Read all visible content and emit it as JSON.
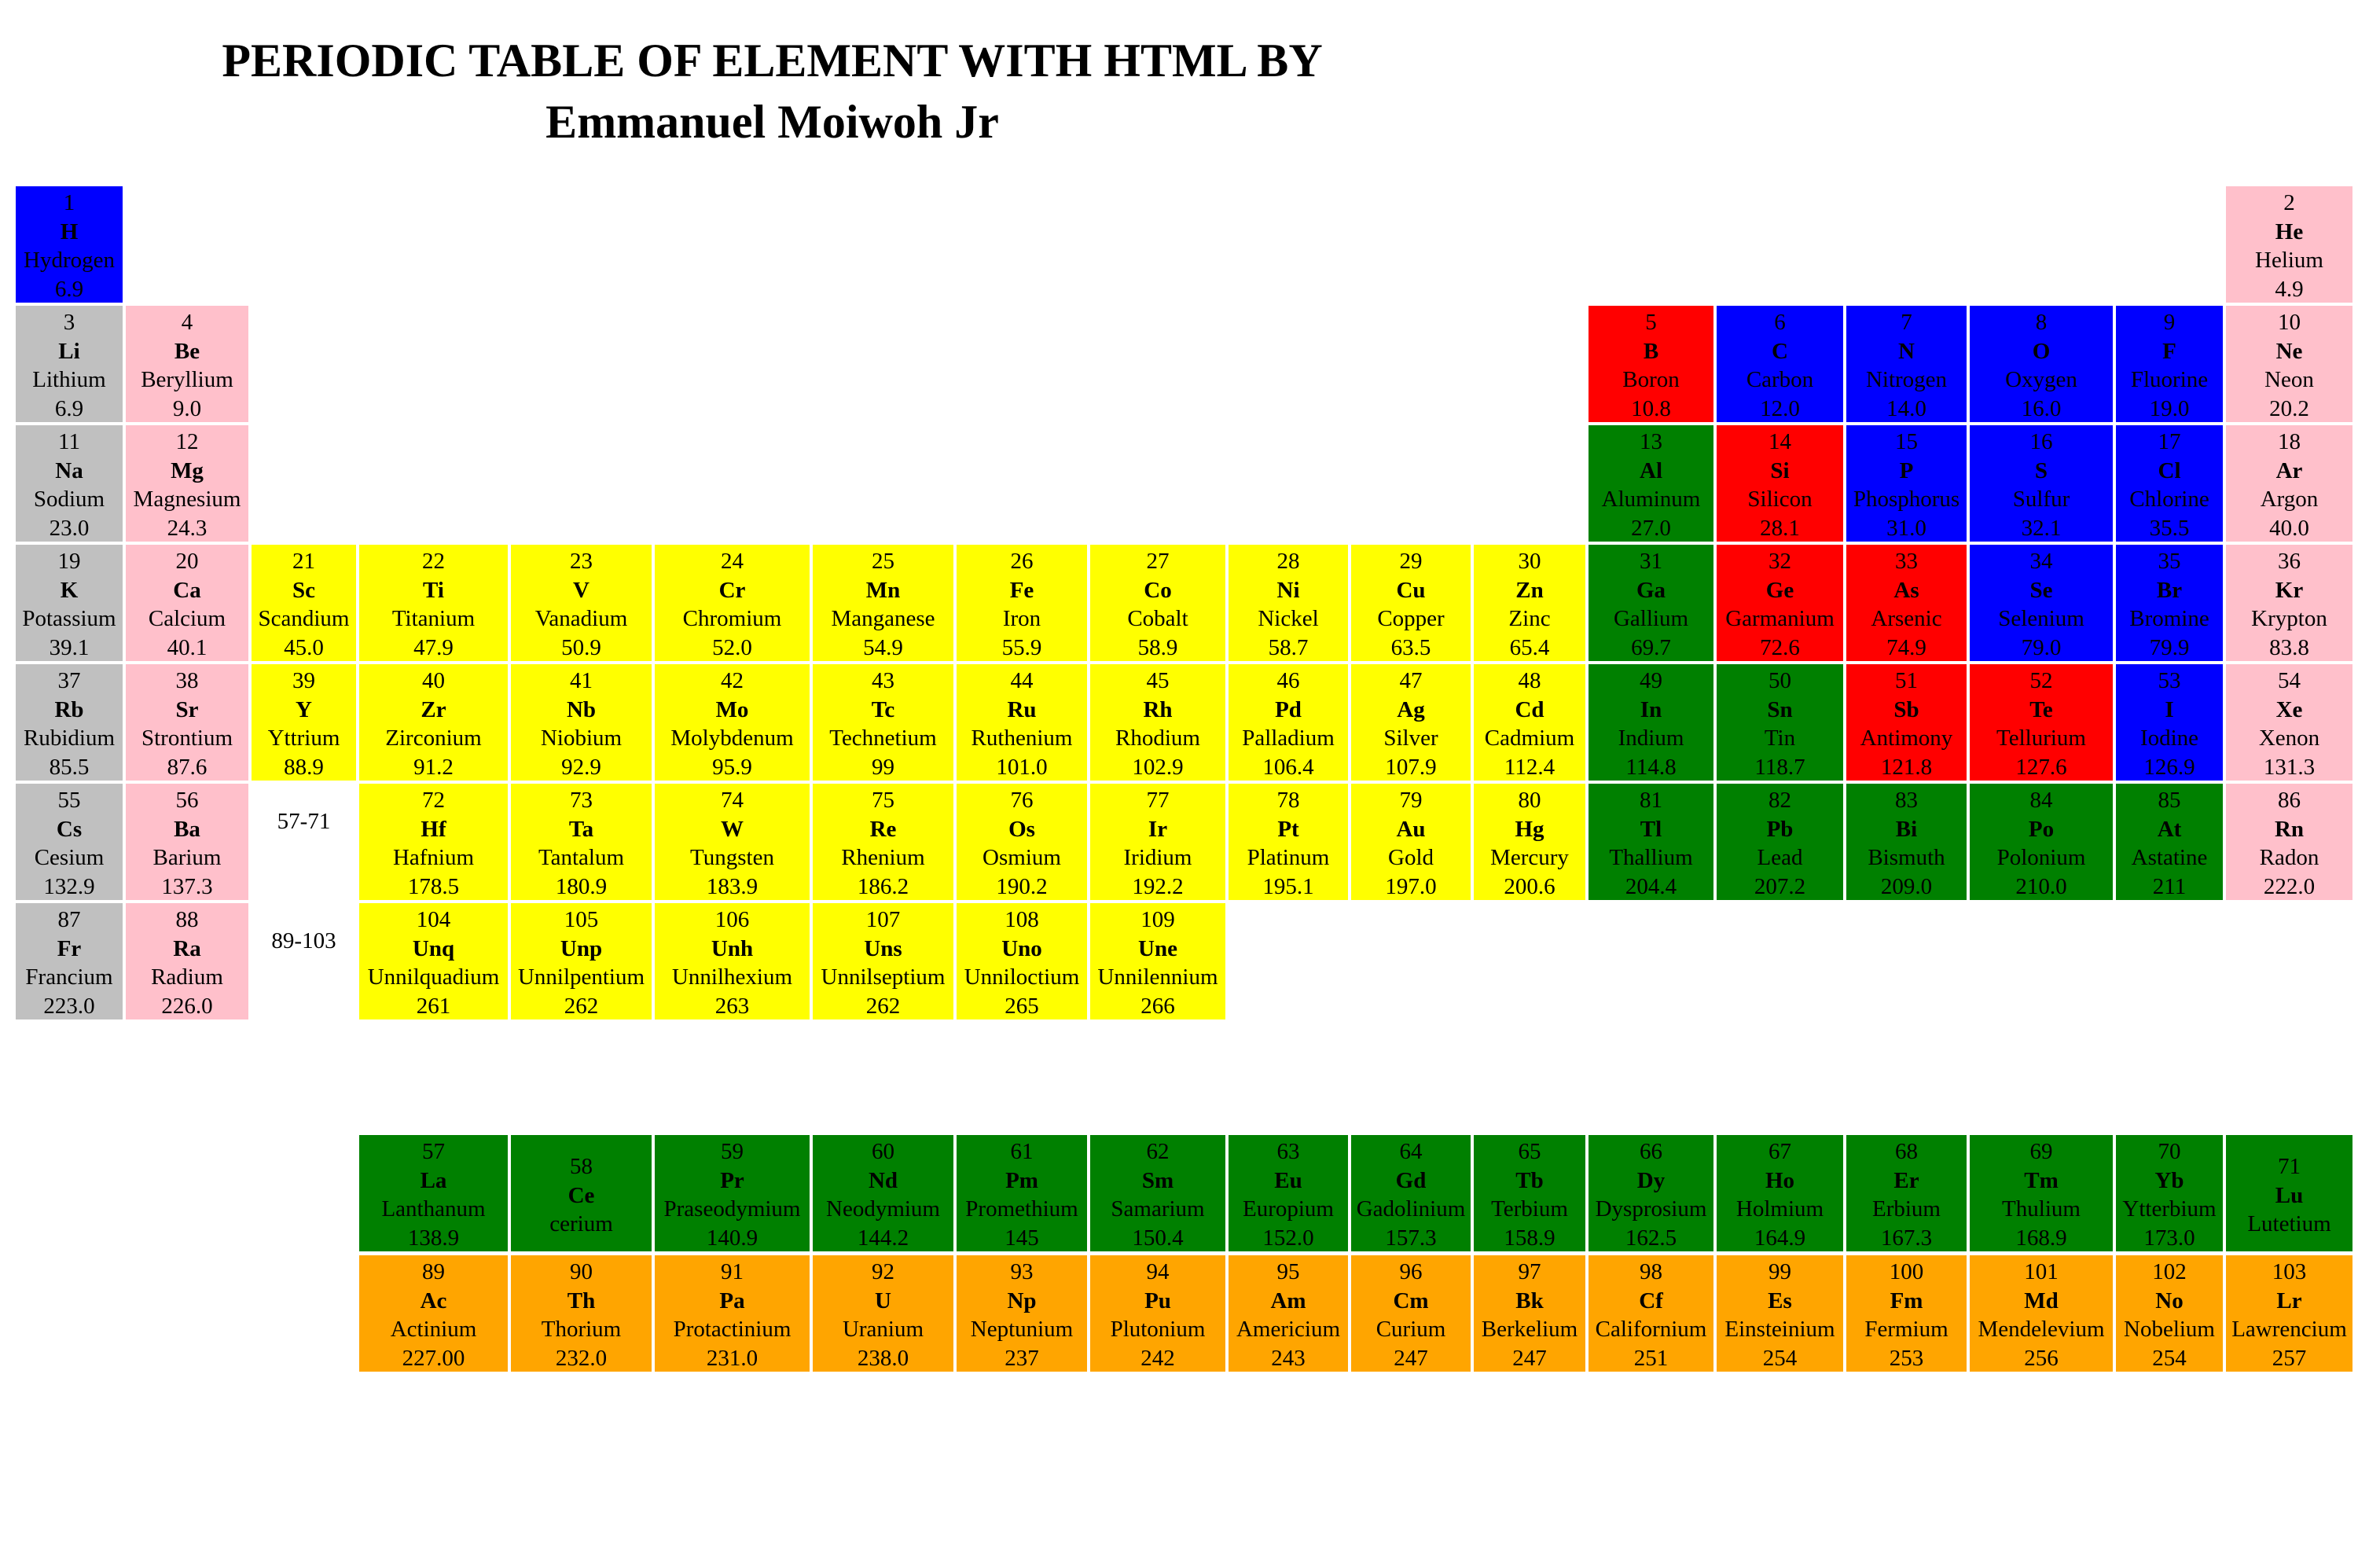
{
  "title": {
    "line1": "PERIODIC TABLE OF ELEMENT WITH HTML BY",
    "line2": "Emmanuel Moiwoh Jr"
  },
  "colors": {
    "gray": "#c0c0c0",
    "pink": "#ffc0cb",
    "blue": "#0000ff",
    "red": "#ff0000",
    "green": "#008000",
    "yellow": "#ffff00",
    "orange": "#ffa500"
  },
  "placeholders": {
    "lanthanides": "57-71",
    "actinides": "89-103"
  },
  "elements": [
    {
      "row": 1,
      "col": 1,
      "num": "1",
      "sym": "H",
      "name": "Hydrogen",
      "mass": "6.9",
      "color": "blue"
    },
    {
      "row": 1,
      "col": 18,
      "num": "2",
      "sym": "He",
      "name": "Helium",
      "mass": "4.9",
      "color": "pink"
    },
    {
      "row": 2,
      "col": 1,
      "num": "3",
      "sym": "Li",
      "name": "Lithium",
      "mass": "6.9",
      "color": "gray"
    },
    {
      "row": 2,
      "col": 2,
      "num": "4",
      "sym": "Be",
      "name": "Beryllium",
      "mass": "9.0",
      "color": "pink"
    },
    {
      "row": 2,
      "col": 13,
      "num": "5",
      "sym": "B",
      "name": "Boron",
      "mass": "10.8",
      "color": "red"
    },
    {
      "row": 2,
      "col": 14,
      "num": "6",
      "sym": "C",
      "name": "Carbon",
      "mass": "12.0",
      "color": "blue"
    },
    {
      "row": 2,
      "col": 15,
      "num": "7",
      "sym": "N",
      "name": "Nitrogen",
      "mass": "14.0",
      "color": "blue"
    },
    {
      "row": 2,
      "col": 16,
      "num": "8",
      "sym": "O",
      "name": "Oxygen",
      "mass": "16.0",
      "color": "blue"
    },
    {
      "row": 2,
      "col": 17,
      "num": "9",
      "sym": "F",
      "name": "Fluorine",
      "mass": "19.0",
      "color": "blue"
    },
    {
      "row": 2,
      "col": 18,
      "num": "10",
      "sym": "Ne",
      "name": "Neon",
      "mass": "20.2",
      "color": "pink"
    },
    {
      "row": 3,
      "col": 1,
      "num": "11",
      "sym": "Na",
      "name": "Sodium",
      "mass": "23.0",
      "color": "gray"
    },
    {
      "row": 3,
      "col": 2,
      "num": "12",
      "sym": "Mg",
      "name": "Magnesium",
      "mass": "24.3",
      "color": "pink"
    },
    {
      "row": 3,
      "col": 13,
      "num": "13",
      "sym": "Al",
      "name": "Aluminum",
      "mass": "27.0",
      "color": "green"
    },
    {
      "row": 3,
      "col": 14,
      "num": "14",
      "sym": "Si",
      "name": "Silicon",
      "mass": "28.1",
      "color": "red"
    },
    {
      "row": 3,
      "col": 15,
      "num": "15",
      "sym": "P",
      "name": "Phosphorus",
      "mass": "31.0",
      "color": "blue"
    },
    {
      "row": 3,
      "col": 16,
      "num": "16",
      "sym": "S",
      "name": "Sulfur",
      "mass": "32.1",
      "color": "blue"
    },
    {
      "row": 3,
      "col": 17,
      "num": "17",
      "sym": "Cl",
      "name": "Chlorine",
      "mass": "35.5",
      "color": "blue"
    },
    {
      "row": 3,
      "col": 18,
      "num": "18",
      "sym": "Ar",
      "name": "Argon",
      "mass": "40.0",
      "color": "pink"
    },
    {
      "row": 4,
      "col": 1,
      "num": "19",
      "sym": "K",
      "name": "Potassium",
      "mass": "39.1",
      "color": "gray"
    },
    {
      "row": 4,
      "col": 2,
      "num": "20",
      "sym": "Ca",
      "name": "Calcium",
      "mass": "40.1",
      "color": "pink"
    },
    {
      "row": 4,
      "col": 3,
      "num": "21",
      "sym": "Sc",
      "name": "Scandium",
      "mass": "45.0",
      "color": "yellow"
    },
    {
      "row": 4,
      "col": 4,
      "num": "22",
      "sym": "Ti",
      "name": "Titanium",
      "mass": "47.9",
      "color": "yellow"
    },
    {
      "row": 4,
      "col": 5,
      "num": "23",
      "sym": "V",
      "name": "Vanadium",
      "mass": "50.9",
      "color": "yellow"
    },
    {
      "row": 4,
      "col": 6,
      "num": "24",
      "sym": "Cr",
      "name": "Chromium",
      "mass": "52.0",
      "color": "yellow"
    },
    {
      "row": 4,
      "col": 7,
      "num": "25",
      "sym": "Mn",
      "name": "Manganese",
      "mass": "54.9",
      "color": "yellow"
    },
    {
      "row": 4,
      "col": 8,
      "num": "26",
      "sym": "Fe",
      "name": "Iron",
      "mass": "55.9",
      "color": "yellow"
    },
    {
      "row": 4,
      "col": 9,
      "num": "27",
      "sym": "Co",
      "name": "Cobalt",
      "mass": "58.9",
      "color": "yellow"
    },
    {
      "row": 4,
      "col": 10,
      "num": "28",
      "sym": "Ni",
      "name": "Nickel",
      "mass": "58.7",
      "color": "yellow"
    },
    {
      "row": 4,
      "col": 11,
      "num": "29",
      "sym": "Cu",
      "name": "Copper",
      "mass": "63.5",
      "color": "yellow"
    },
    {
      "row": 4,
      "col": 12,
      "num": "30",
      "sym": "Zn",
      "name": "Zinc",
      "mass": "65.4",
      "color": "yellow"
    },
    {
      "row": 4,
      "col": 13,
      "num": "31",
      "sym": "Ga",
      "name": "Gallium",
      "mass": "69.7",
      "color": "green"
    },
    {
      "row": 4,
      "col": 14,
      "num": "32",
      "sym": "Ge",
      "name": "Garmanium",
      "mass": "72.6",
      "color": "red"
    },
    {
      "row": 4,
      "col": 15,
      "num": "33",
      "sym": "As",
      "name": "Arsenic",
      "mass": "74.9",
      "color": "red"
    },
    {
      "row": 4,
      "col": 16,
      "num": "34",
      "sym": "Se",
      "name": "Selenium",
      "mass": "79.0",
      "color": "blue"
    },
    {
      "row": 4,
      "col": 17,
      "num": "35",
      "sym": "Br",
      "name": "Bromine",
      "mass": "79.9",
      "color": "blue"
    },
    {
      "row": 4,
      "col": 18,
      "num": "36",
      "sym": "Kr",
      "name": "Krypton",
      "mass": "83.8",
      "color": "pink"
    },
    {
      "row": 5,
      "col": 1,
      "num": "37",
      "sym": "Rb",
      "name": "Rubidium",
      "mass": "85.5",
      "color": "gray"
    },
    {
      "row": 5,
      "col": 2,
      "num": "38",
      "sym": "Sr",
      "name": "Strontium",
      "mass": "87.6",
      "color": "pink"
    },
    {
      "row": 5,
      "col": 3,
      "num": "39",
      "sym": "Y",
      "name": "Yttrium",
      "mass": "88.9",
      "color": "yellow"
    },
    {
      "row": 5,
      "col": 4,
      "num": "40",
      "sym": "Zr",
      "name": "Zirconium",
      "mass": "91.2",
      "color": "yellow"
    },
    {
      "row": 5,
      "col": 5,
      "num": "41",
      "sym": "Nb",
      "name": "Niobium",
      "mass": "92.9",
      "color": "yellow"
    },
    {
      "row": 5,
      "col": 6,
      "num": "42",
      "sym": "Mo",
      "name": "Molybdenum",
      "mass": "95.9",
      "color": "yellow"
    },
    {
      "row": 5,
      "col": 7,
      "num": "43",
      "sym": "Tc",
      "name": "Technetium",
      "mass": "99",
      "color": "yellow"
    },
    {
      "row": 5,
      "col": 8,
      "num": "44",
      "sym": "Ru",
      "name": "Ruthenium",
      "mass": "101.0",
      "color": "yellow"
    },
    {
      "row": 5,
      "col": 9,
      "num": "45",
      "sym": "Rh",
      "name": "Rhodium",
      "mass": "102.9",
      "color": "yellow"
    },
    {
      "row": 5,
      "col": 10,
      "num": "46",
      "sym": "Pd",
      "name": "Palladium",
      "mass": "106.4",
      "color": "yellow"
    },
    {
      "row": 5,
      "col": 11,
      "num": "47",
      "sym": "Ag",
      "name": "Silver",
      "mass": "107.9",
      "color": "yellow"
    },
    {
      "row": 5,
      "col": 12,
      "num": "48",
      "sym": "Cd",
      "name": "Cadmium",
      "mass": "112.4",
      "color": "yellow"
    },
    {
      "row": 5,
      "col": 13,
      "num": "49",
      "sym": "In",
      "name": "Indium",
      "mass": "114.8",
      "color": "green"
    },
    {
      "row": 5,
      "col": 14,
      "num": "50",
      "sym": "Sn",
      "name": "Tin",
      "mass": "118.7",
      "color": "green"
    },
    {
      "row": 5,
      "col": 15,
      "num": "51",
      "sym": "Sb",
      "name": "Antimony",
      "mass": "121.8",
      "color": "red"
    },
    {
      "row": 5,
      "col": 16,
      "num": "52",
      "sym": "Te",
      "name": "Tellurium",
      "mass": "127.6",
      "color": "red"
    },
    {
      "row": 5,
      "col": 17,
      "num": "53",
      "sym": "I",
      "name": "Iodine",
      "mass": "126.9",
      "color": "blue"
    },
    {
      "row": 5,
      "col": 18,
      "num": "54",
      "sym": "Xe",
      "name": "Xenon",
      "mass": "131.3",
      "color": "pink"
    },
    {
      "row": 6,
      "col": 1,
      "num": "55",
      "sym": "Cs",
      "name": "Cesium",
      "mass": "132.9",
      "color": "gray"
    },
    {
      "row": 6,
      "col": 2,
      "num": "56",
      "sym": "Ba",
      "name": "Barium",
      "mass": "137.3",
      "color": "pink"
    },
    {
      "row": 6,
      "col": 4,
      "num": "72",
      "sym": "Hf",
      "name": "Hafnium",
      "mass": "178.5",
      "color": "yellow"
    },
    {
      "row": 6,
      "col": 5,
      "num": "73",
      "sym": "Ta",
      "name": "Tantalum",
      "mass": "180.9",
      "color": "yellow"
    },
    {
      "row": 6,
      "col": 6,
      "num": "74",
      "sym": "W",
      "name": "Tungsten",
      "mass": "183.9",
      "color": "yellow"
    },
    {
      "row": 6,
      "col": 7,
      "num": "75",
      "sym": "Re",
      "name": "Rhenium",
      "mass": "186.2",
      "color": "yellow"
    },
    {
      "row": 6,
      "col": 8,
      "num": "76",
      "sym": "Os",
      "name": "Osmium",
      "mass": "190.2",
      "color": "yellow"
    },
    {
      "row": 6,
      "col": 9,
      "num": "77",
      "sym": "Ir",
      "name": "Iridium",
      "mass": "192.2",
      "color": "yellow"
    },
    {
      "row": 6,
      "col": 10,
      "num": "78",
      "sym": "Pt",
      "name": "Platinum",
      "mass": "195.1",
      "color": "yellow"
    },
    {
      "row": 6,
      "col": 11,
      "num": "79",
      "sym": "Au",
      "name": "Gold",
      "mass": "197.0",
      "color": "yellow"
    },
    {
      "row": 6,
      "col": 12,
      "num": "80",
      "sym": "Hg",
      "name": "Mercury",
      "mass": "200.6",
      "color": "yellow"
    },
    {
      "row": 6,
      "col": 13,
      "num": "81",
      "sym": "Tl",
      "name": "Thallium",
      "mass": "204.4",
      "color": "green"
    },
    {
      "row": 6,
      "col": 14,
      "num": "82",
      "sym": "Pb",
      "name": "Lead",
      "mass": "207.2",
      "color": "green"
    },
    {
      "row": 6,
      "col": 15,
      "num": "83",
      "sym": "Bi",
      "name": "Bismuth",
      "mass": "209.0",
      "color": "green"
    },
    {
      "row": 6,
      "col": 16,
      "num": "84",
      "sym": "Po",
      "name": "Polonium",
      "mass": "210.0",
      "color": "green"
    },
    {
      "row": 6,
      "col": 17,
      "num": "85",
      "sym": "At",
      "name": "Astatine",
      "mass": "211",
      "color": "green"
    },
    {
      "row": 6,
      "col": 18,
      "num": "86",
      "sym": "Rn",
      "name": "Radon",
      "mass": "222.0",
      "color": "pink"
    },
    {
      "row": 7,
      "col": 1,
      "num": "87",
      "sym": "Fr",
      "name": "Francium",
      "mass": "223.0",
      "color": "gray"
    },
    {
      "row": 7,
      "col": 2,
      "num": "88",
      "sym": "Ra",
      "name": "Radium",
      "mass": "226.0",
      "color": "pink"
    },
    {
      "row": 7,
      "col": 4,
      "num": "104",
      "sym": "Unq",
      "name": "Unnilquadium",
      "mass": "261",
      "color": "yellow"
    },
    {
      "row": 7,
      "col": 5,
      "num": "105",
      "sym": "Unp",
      "name": "Unnilpentium",
      "mass": "262",
      "color": "yellow"
    },
    {
      "row": 7,
      "col": 6,
      "num": "106",
      "sym": "Unh",
      "name": "Unnilhexium",
      "mass": "263",
      "color": "yellow"
    },
    {
      "row": 7,
      "col": 7,
      "num": "107",
      "sym": "Uns",
      "name": "Unnilseptium",
      "mass": "262",
      "color": "yellow"
    },
    {
      "row": 7,
      "col": 8,
      "num": "108",
      "sym": "Uno",
      "name": "Unniloctium",
      "mass": "265",
      "color": "yellow"
    },
    {
      "row": 7,
      "col": 9,
      "num": "109",
      "sym": "Une",
      "name": "Unnilennium",
      "mass": "266",
      "color": "yellow"
    }
  ],
  "lanthanides": [
    {
      "col": 4,
      "num": "57",
      "sym": "La",
      "name": "Lanthanum",
      "mass": "138.9"
    },
    {
      "col": 5,
      "num": "58",
      "sym": "Ce",
      "name": "cerium",
      "mass": ""
    },
    {
      "col": 6,
      "num": "59",
      "sym": "Pr",
      "name": "Praseodymium",
      "mass": "140.9"
    },
    {
      "col": 7,
      "num": "60",
      "sym": "Nd",
      "name": "Neodymium",
      "mass": "144.2"
    },
    {
      "col": 8,
      "num": "61",
      "sym": "Pm",
      "name": "Promethium",
      "mass": "145"
    },
    {
      "col": 9,
      "num": "62",
      "sym": "Sm",
      "name": "Samarium",
      "mass": "150.4"
    },
    {
      "col": 10,
      "num": "63",
      "sym": "Eu",
      "name": "Europium",
      "mass": "152.0"
    },
    {
      "col": 11,
      "num": "64",
      "sym": "Gd",
      "name": "Gadolinium",
      "mass": "157.3"
    },
    {
      "col": 12,
      "num": "65",
      "sym": "Tb",
      "name": "Terbium",
      "mass": "158.9"
    },
    {
      "col": 13,
      "num": "66",
      "sym": "Dy",
      "name": "Dysprosium",
      "mass": "162.5"
    },
    {
      "col": 14,
      "num": "67",
      "sym": "Ho",
      "name": "Holmium",
      "mass": "164.9"
    },
    {
      "col": 15,
      "num": "68",
      "sym": "Er",
      "name": "Erbium",
      "mass": "167.3"
    },
    {
      "col": 16,
      "num": "69",
      "sym": "Tm",
      "name": "Thulium",
      "mass": "168.9"
    },
    {
      "col": 17,
      "num": "70",
      "sym": "Yb",
      "name": "Ytterbium",
      "mass": "173.0"
    },
    {
      "col": 18,
      "num": "71",
      "sym": "Lu",
      "name": "Lutetium",
      "mass": ""
    }
  ],
  "actinides": [
    {
      "col": 4,
      "num": "89",
      "sym": "Ac",
      "name": "Actinium",
      "mass": "227.00"
    },
    {
      "col": 5,
      "num": "90",
      "sym": "Th",
      "name": "Thorium",
      "mass": "232.0"
    },
    {
      "col": 6,
      "num": "91",
      "sym": "Pa",
      "name": "Protactinium",
      "mass": "231.0"
    },
    {
      "col": 7,
      "num": "92",
      "sym": "U",
      "name": "Uranium",
      "mass": "238.0"
    },
    {
      "col": 8,
      "num": "93",
      "sym": "Np",
      "name": "Neptunium",
      "mass": "237"
    },
    {
      "col": 9,
      "num": "94",
      "sym": "Pu",
      "name": "Plutonium",
      "mass": "242"
    },
    {
      "col": 10,
      "num": "95",
      "sym": "Am",
      "name": "Americium",
      "mass": "243"
    },
    {
      "col": 11,
      "num": "96",
      "sym": "Cm",
      "name": "Curium",
      "mass": "247"
    },
    {
      "col": 12,
      "num": "97",
      "sym": "Bk",
      "name": "Berkelium",
      "mass": "247"
    },
    {
      "col": 13,
      "num": "98",
      "sym": "Cf",
      "name": "Californium",
      "mass": "251"
    },
    {
      "col": 14,
      "num": "99",
      "sym": "Es",
      "name": "Einsteinium",
      "mass": "254"
    },
    {
      "col": 15,
      "num": "100",
      "sym": "Fm",
      "name": "Fermium",
      "mass": "253"
    },
    {
      "col": 16,
      "num": "101",
      "sym": "Md",
      "name": "Mendelevium",
      "mass": "256"
    },
    {
      "col": 17,
      "num": "102",
      "sym": "No",
      "name": "Nobelium",
      "mass": "254"
    },
    {
      "col": 18,
      "num": "103",
      "sym": "Lr",
      "name": "Lawrencium",
      "mass": "257"
    }
  ]
}
